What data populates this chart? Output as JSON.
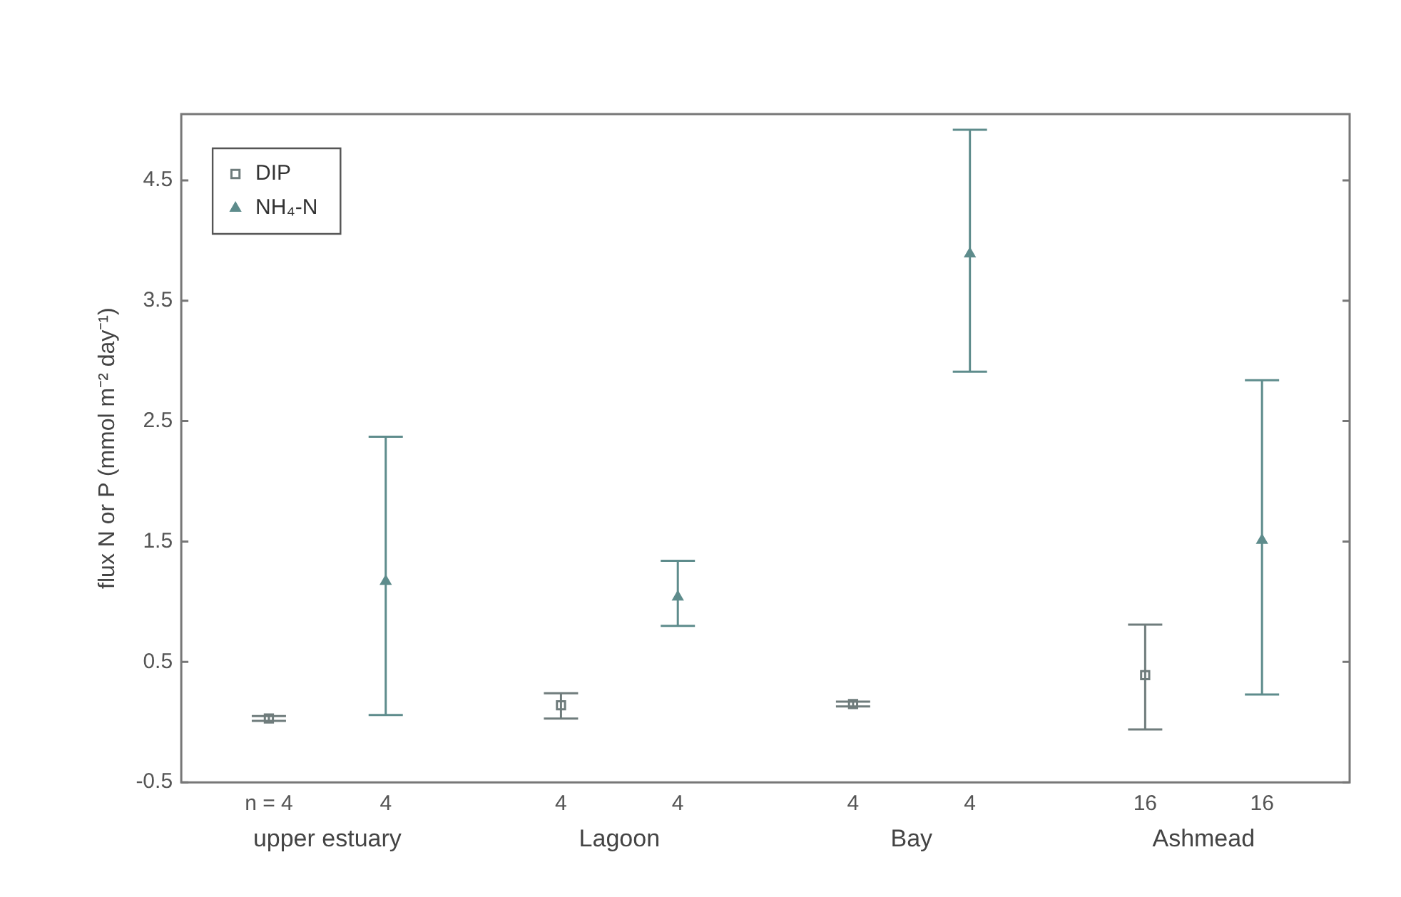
{
  "chart_data": {
    "type": "scatter",
    "categories": [
      "upper estuary",
      "Lagoon",
      "Bay",
      "Ashmead"
    ],
    "ylabel": "flux N or P (mmol m⁻² day⁻¹)",
    "ylim": [
      -0.5,
      5.05
    ],
    "yticks": [
      -0.5,
      0.5,
      1.5,
      2.5,
      3.5,
      4.5
    ],
    "grid": false,
    "legend": "top left",
    "series": [
      {
        "name": "DIP",
        "color": "#6f7c7c",
        "marker": "square",
        "values": [
          0.03,
          0.14,
          0.15,
          0.39
        ],
        "errors": [
          0.02,
          [
            0.03,
            0.24
          ],
          0.02,
          [
            -0.06,
            0.81
          ]
        ]
      },
      {
        "name": "NH₄-N",
        "color": "#5e8c8c",
        "marker": "triangle",
        "values": [
          1.17,
          1.04,
          3.89,
          1.51
        ],
        "errors": [
          [
            0.06,
            2.37
          ],
          [
            0.8,
            1.34
          ],
          [
            2.91,
            4.92
          ],
          [
            0.23,
            2.84
          ]
        ]
      }
    ],
    "annotations": [
      "n = 4",
      "4",
      "4",
      "4",
      "4",
      "4",
      "16",
      "16"
    ]
  }
}
